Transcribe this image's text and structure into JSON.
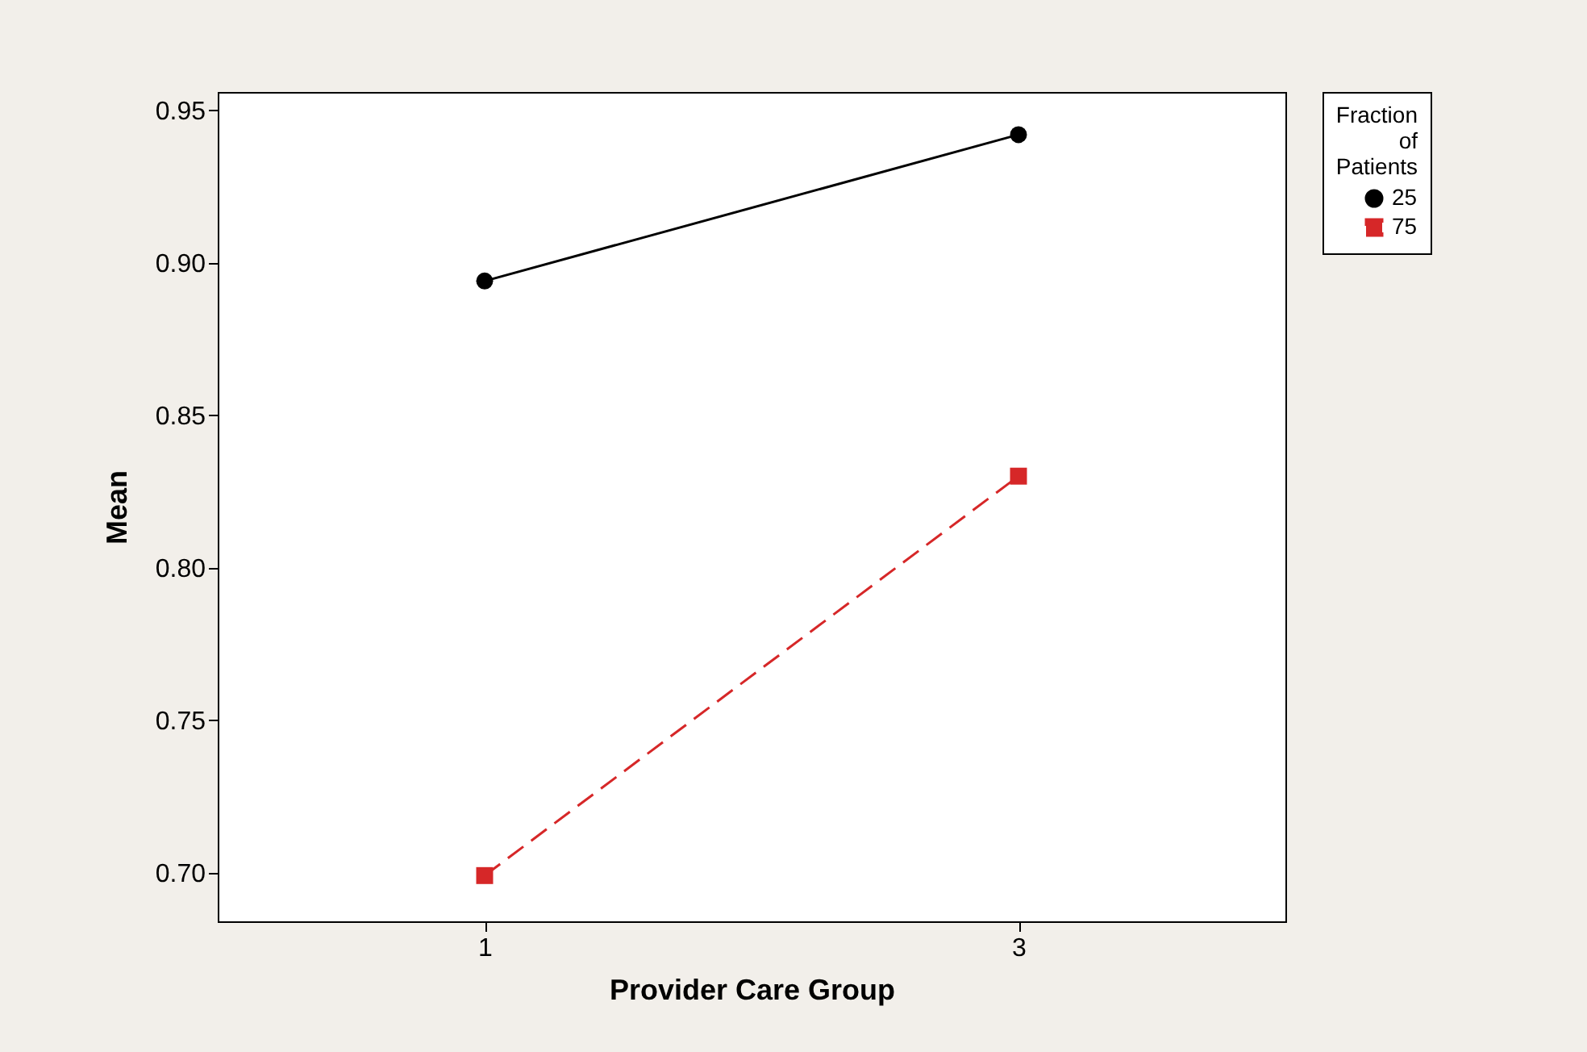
{
  "chart_data": {
    "type": "line",
    "xlabel": "Provider Care Group",
    "ylabel": "Mean",
    "legend_title": "Fraction of Patients",
    "x": [
      1,
      3
    ],
    "xlim": [
      0,
      4
    ],
    "xticks": [
      1,
      3
    ],
    "ylim": [
      0.684,
      0.956
    ],
    "yticks": [
      {
        "value": 0.7,
        "label": "0.70"
      },
      {
        "value": 0.75,
        "label": "0.75"
      },
      {
        "value": 0.8,
        "label": "0.80"
      },
      {
        "value": 0.85,
        "label": "0.85"
      },
      {
        "value": 0.9,
        "label": "0.90"
      },
      {
        "value": 0.95,
        "label": "0.95"
      }
    ],
    "series": [
      {
        "name": "25",
        "color": "#000000",
        "values": [
          0.894,
          0.942
        ],
        "marker": "circle",
        "line_style": "solid"
      },
      {
        "name": "75",
        "color": "#d62728",
        "values": [
          0.699,
          0.83
        ],
        "marker": "square",
        "line_style": "dashed"
      }
    ],
    "legend": "top right",
    "grid": false
  }
}
